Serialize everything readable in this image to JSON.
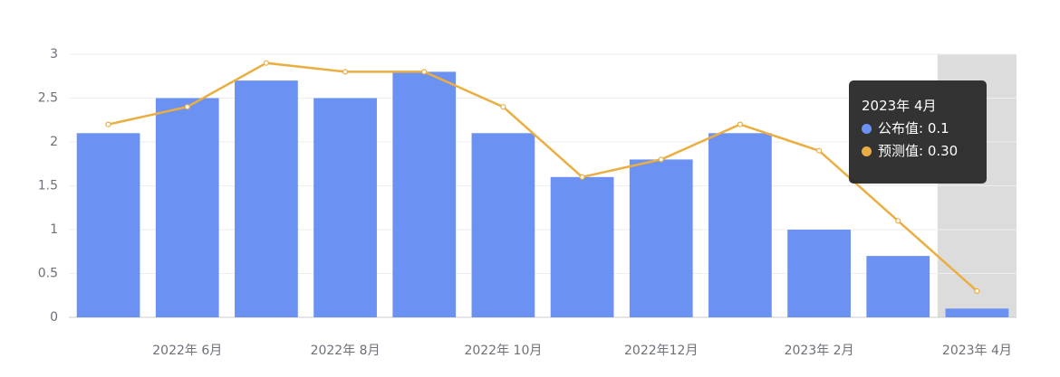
{
  "chart_data": {
    "type": "bar-line",
    "categories": [
      null,
      "2022年 6月",
      null,
      "2022年 8月",
      null,
      "2022年 10月",
      null,
      "2022年12月",
      null,
      "2023年 2月",
      null,
      "2023年 4月"
    ],
    "series": [
      {
        "name": "公布值",
        "type": "bar",
        "color": "#6b91f2",
        "values": [
          2.1,
          2.5,
          2.7,
          2.5,
          2.8,
          2.1,
          1.6,
          1.8,
          2.1,
          1.0,
          0.7,
          0.1
        ]
      },
      {
        "name": "预测值",
        "type": "line",
        "color": "#eaae41",
        "values": [
          2.2,
          2.4,
          2.9,
          2.8,
          2.8,
          2.4,
          1.6,
          1.8,
          2.2,
          1.9,
          1.1,
          0.3
        ]
      }
    ],
    "ylim": [
      0,
      3
    ],
    "yticks": [
      0,
      0.5,
      1,
      1.5,
      2,
      2.5,
      3
    ],
    "grid": true,
    "highlight_index": 11,
    "tooltip": {
      "title": "2023年 4月",
      "items": [
        "公布值: 0.1",
        "预测值: 0.30"
      ]
    }
  }
}
